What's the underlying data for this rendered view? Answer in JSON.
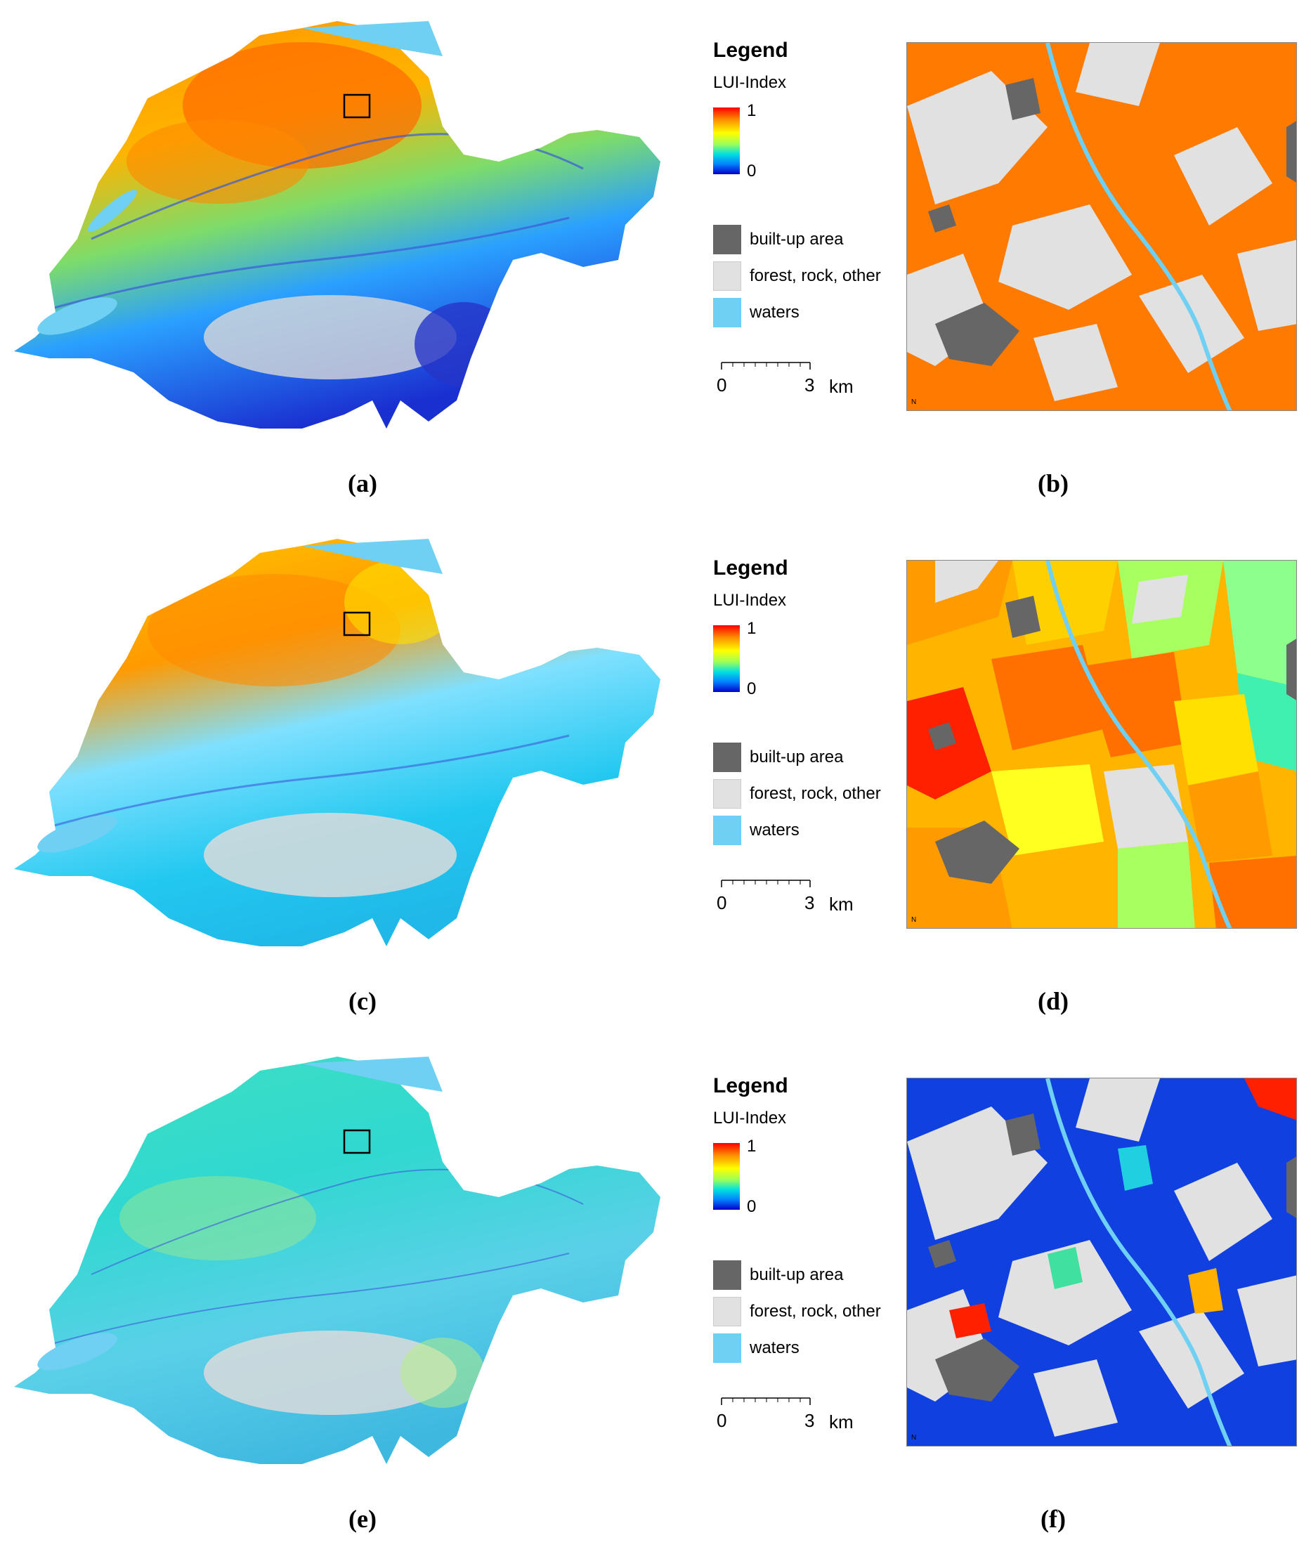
{
  "legend": {
    "title": "Legend",
    "subtitle": "LUI-Index",
    "ramp_max": "1",
    "ramp_min": "0",
    "ramp_colors": [
      "#ff0000",
      "#ff8c00",
      "#ffff00",
      "#9bff5a",
      "#00e0e0",
      "#0080ff",
      "#0000c8"
    ],
    "classes": [
      {
        "label": "built-up area",
        "color": "#666666"
      },
      {
        "label": "forest, rock, other",
        "color": "#e1e1e1"
      },
      {
        "label": "waters",
        "color": "#6fd0f4"
      }
    ],
    "scale": {
      "start": "0",
      "end": "3",
      "unit": "km"
    },
    "north": "N"
  },
  "panels": [
    {
      "overview_label": "(a)",
      "detail_label": "(b)",
      "overview_palette": "warm",
      "detail_palette": "orange"
    },
    {
      "overview_label": "(c)",
      "detail_label": "(d)",
      "overview_palette": "mixed",
      "detail_palette": "patches"
    },
    {
      "overview_label": "(e)",
      "detail_label": "(f)",
      "overview_palette": "cool",
      "detail_palette": "speckled"
    }
  ]
}
